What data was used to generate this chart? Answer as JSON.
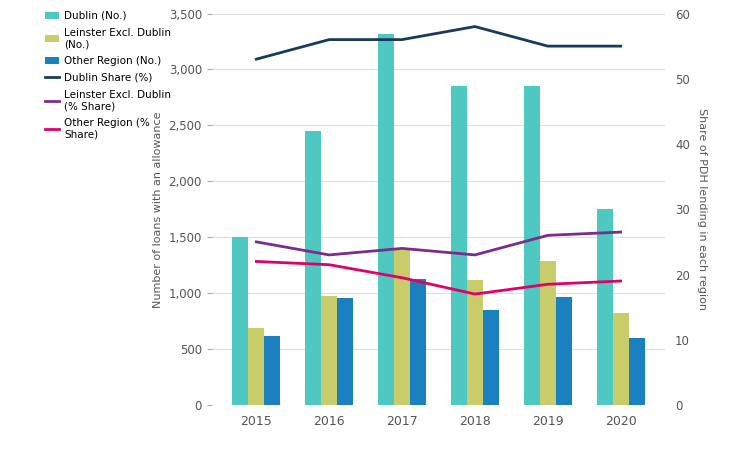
{
  "years": [
    2015,
    2016,
    2017,
    2018,
    2019,
    2020
  ],
  "dublin_no": [
    1500,
    2450,
    3320,
    2850,
    2850,
    1750
  ],
  "leinster_no": [
    690,
    975,
    1390,
    1120,
    1285,
    820
  ],
  "other_no": [
    615,
    955,
    1130,
    845,
    965,
    600
  ],
  "dublin_share": [
    53,
    56,
    56,
    58,
    55,
    55
  ],
  "leinster_share": [
    25,
    23,
    24,
    23,
    26,
    26.5
  ],
  "other_share": [
    22,
    21.5,
    19.5,
    17,
    18.5,
    19
  ],
  "bar_width": 0.22,
  "colors": {
    "dublin_bar": "#4EC8C0",
    "leinster_bar": "#C8CC6A",
    "other_bar": "#1B80C0",
    "dublin_line": "#1A3A5C",
    "leinster_line": "#7B2D8B",
    "other_line": "#E0006A"
  },
  "ylim_left": [
    0,
    3500
  ],
  "ylim_right": [
    0,
    60
  ],
  "yticks_left": [
    0,
    500,
    1000,
    1500,
    2000,
    2500,
    3000,
    3500
  ],
  "yticks_right": [
    0,
    10,
    20,
    30,
    40,
    50,
    60
  ],
  "ylabel_left": "Number of loans with an allowance",
  "ylabel_right": "Share of PDH lending in each region",
  "legend_labels": {
    "dublin_bar": "Dublin (No.)",
    "leinster_bar": "Leinster Excl. Dublin\n(No.)",
    "other_bar": "Other Region (No.)",
    "dublin_line": "Dublin Share (%)",
    "leinster_line": "Leinster Excl. Dublin\n(% Share)",
    "other_line": "Other Region (%\nShare)"
  }
}
